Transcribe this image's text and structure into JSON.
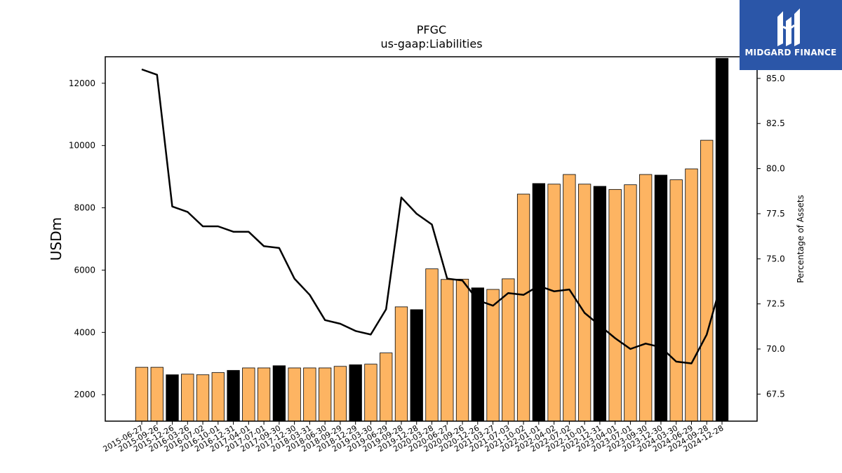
{
  "chart_data": {
    "type": "bar",
    "title": "PFGC",
    "subtitle": "us-gaap:Liabilities",
    "ylabel": "USDm",
    "y2label": "Percentage of Assets",
    "ylim": [
      1150,
      12850
    ],
    "y2lim": [
      66.0,
      86.2
    ],
    "yticks": [
      2000,
      4000,
      6000,
      8000,
      10000,
      12000
    ],
    "y2ticks": [
      67.5,
      70.0,
      72.5,
      75.0,
      77.5,
      80.0,
      82.5,
      85.0
    ],
    "y2tick_labels": [
      "67.5",
      "70.0",
      "72.5",
      "75.0",
      "77.5",
      "80.0",
      "82.5",
      "85.0"
    ],
    "colors": {
      "bar": "#fdb462",
      "bar_highlight": "#000000",
      "line": "#000000"
    },
    "categories": [
      "2015-06-27",
      "2015-09-26",
      "2015-12-26",
      "2016-03-26",
      "2016-07-02",
      "2016-10-01",
      "2016-12-31",
      "2017-04-01",
      "2017-07-01",
      "2017-09-30",
      "2017-12-30",
      "2018-03-31",
      "2018-06-30",
      "2018-09-29",
      "2018-12-29",
      "2019-03-30",
      "2019-06-29",
      "2019-09-28",
      "2019-12-28",
      "2020-03-28",
      "2020-06-27",
      "2020-09-26",
      "2020-12-26",
      "2021-03-27",
      "2021-07-03",
      "2021-10-02",
      "2022-01-01",
      "2022-04-02",
      "2022-07-02",
      "2022-10-01",
      "2022-12-31",
      "2023-04-01",
      "2023-07-01",
      "2023-09-30",
      "2023-12-30",
      "2024-03-30",
      "2024-06-29",
      "2024-09-28",
      "2024-12-28"
    ],
    "series": [
      {
        "type": "bar",
        "values": [
          2880,
          2880,
          2640,
          2660,
          2640,
          2710,
          2780,
          2860,
          2860,
          2930,
          2860,
          2860,
          2860,
          2910,
          2960,
          2980,
          3340,
          4820,
          4730,
          6040,
          5700,
          5710,
          5430,
          5380,
          5720,
          8440,
          8780,
          8760,
          9070,
          8760,
          8690,
          8590,
          8740,
          9070,
          9050,
          8900,
          9250,
          10170,
          12800
        ],
        "highlight": [
          false,
          false,
          true,
          false,
          false,
          false,
          true,
          false,
          false,
          true,
          false,
          false,
          false,
          false,
          true,
          false,
          false,
          false,
          true,
          false,
          false,
          false,
          true,
          false,
          false,
          false,
          true,
          false,
          false,
          false,
          true,
          false,
          false,
          false,
          true,
          false,
          false,
          false,
          true
        ]
      },
      {
        "type": "line",
        "axis": "right",
        "values": [
          85.5,
          85.2,
          77.9,
          77.6,
          76.8,
          76.8,
          76.5,
          76.5,
          75.7,
          75.6,
          73.9,
          73.0,
          71.6,
          71.4,
          71.0,
          70.8,
          72.2,
          78.4,
          77.5,
          76.9,
          73.9,
          73.8,
          72.7,
          72.4,
          73.1,
          73.0,
          73.5,
          73.2,
          73.3,
          72.0,
          71.3,
          70.6,
          70.0,
          70.3,
          70.1,
          69.3,
          69.2,
          70.8,
          73.8
        ]
      }
    ]
  },
  "logo": {
    "text": "MIDGARD FINANCE"
  }
}
